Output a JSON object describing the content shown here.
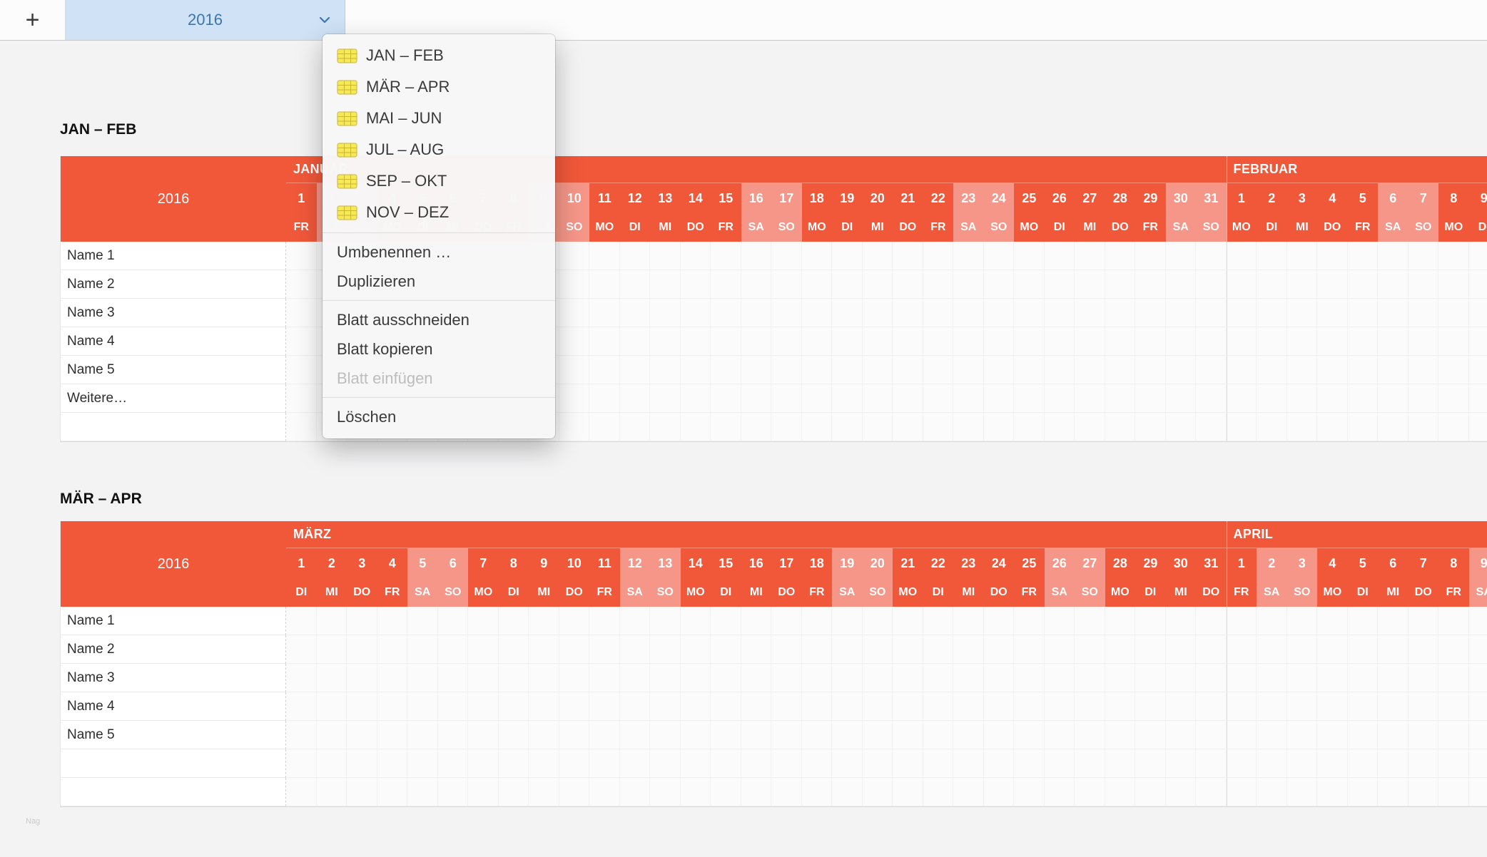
{
  "topbar": {
    "add_button": "+",
    "active_tab": "2016"
  },
  "context_menu": {
    "sheet_items": [
      "JAN – FEB",
      "MÄR – APR",
      "MAI – JUN",
      "JUL – AUG",
      "SEP – OKT",
      "NOV – DEZ"
    ],
    "command_groups": [
      [
        {
          "label": "Umbenennen …",
          "disabled": false
        },
        {
          "label": "Duplizieren",
          "disabled": false
        }
      ],
      [
        {
          "label": "Blatt ausschneiden",
          "disabled": false
        },
        {
          "label": "Blatt kopieren",
          "disabled": false
        },
        {
          "label": "Blatt einfügen",
          "disabled": true
        }
      ],
      [
        {
          "label": "Löschen",
          "disabled": false
        }
      ]
    ]
  },
  "weekdays": [
    "MO",
    "DI",
    "MI",
    "DO",
    "FR",
    "SA",
    "SO"
  ],
  "tables": [
    {
      "title": "JAN – FEB",
      "year_label": "2016",
      "months": [
        {
          "name": "JANUAR",
          "days": 31,
          "start_weekday": "FR"
        },
        {
          "name": "FEBRUAR",
          "days": 9,
          "start_weekday": "MO"
        }
      ],
      "row_labels": [
        "Name 1",
        "Name 2",
        "Name 3",
        "Name 4",
        "Name 5",
        "Weitere…",
        ""
      ]
    },
    {
      "title": "MÄR – APR",
      "year_label": "2016",
      "months": [
        {
          "name": "MÄRZ",
          "days": 31,
          "start_weekday": "DI"
        },
        {
          "name": "APRIL",
          "days": 9,
          "start_weekday": "FR"
        }
      ],
      "row_labels": [
        "Name 1",
        "Name 2",
        "Name 3",
        "Name 4",
        "Name 5",
        "",
        ""
      ]
    }
  ],
  "colors": {
    "header_orange": "#f1583a",
    "weekend_highlight": "#f59688",
    "tab_blue_bg": "#cfe2f6",
    "tab_blue_text": "#3d76ac"
  },
  "watermark": "Nag"
}
